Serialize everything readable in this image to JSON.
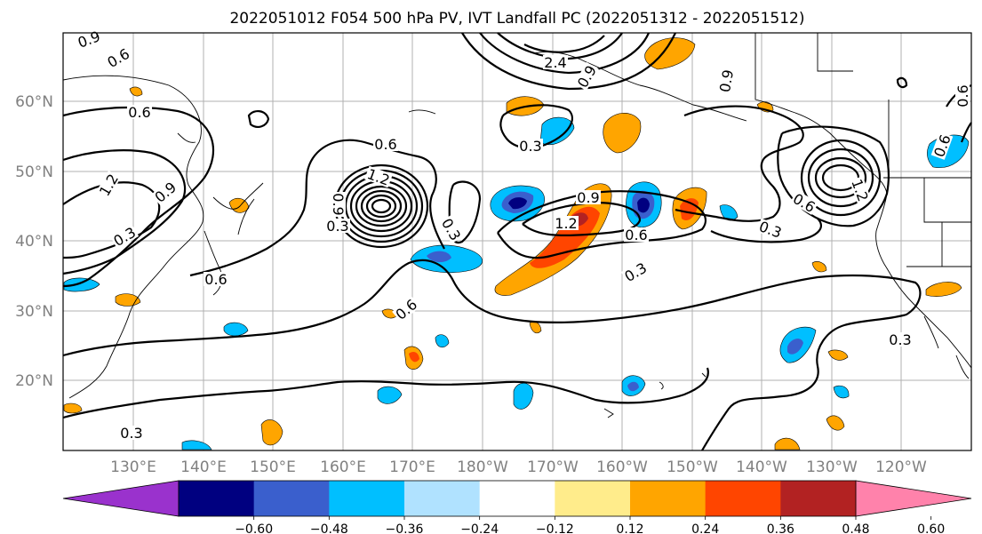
{
  "title": "2022051012 F054 500 hPa PV, IVT Landfall PC (2022051312 - 2022051512)",
  "lat_labels": [
    "60°N",
    "50°N",
    "40°N",
    "30°N",
    "20°N"
  ],
  "lon_labels": [
    "130°E",
    "140°E",
    "150°E",
    "160°E",
    "170°E",
    "180°W",
    "170°W",
    "160°W",
    "150°W",
    "140°W",
    "130°W",
    "120°W"
  ],
  "contour_labels": [
    "0.9",
    "0.6",
    "0.6",
    "1.2",
    "0.9",
    "0.3",
    "0.6",
    "0.6",
    "1.2",
    "0.9",
    "0.3",
    "0.6",
    "0.3",
    "0.9",
    "1.2",
    "0.6",
    "0.3",
    "0.3",
    "0.9",
    "0.6",
    "0.3",
    "0.3",
    "0.3",
    "0.9",
    "1.2",
    "2.4",
    "0.6",
    "0.6"
  ],
  "colorbar": {
    "ticks": [
      "−0.60",
      "−0.48",
      "−0.36",
      "−0.24",
      "−0.12",
      "0.12",
      "0.24",
      "0.36",
      "0.48",
      "0.60"
    ],
    "colors": [
      "#9a32cd",
      "#000080",
      "#3a5fcd",
      "#00bfff",
      "#b0e2ff",
      "#ffffff",
      "#ffec8b",
      "#ffa500",
      "#ff4500",
      "#b22222",
      "#ff82ab"
    ]
  }
}
